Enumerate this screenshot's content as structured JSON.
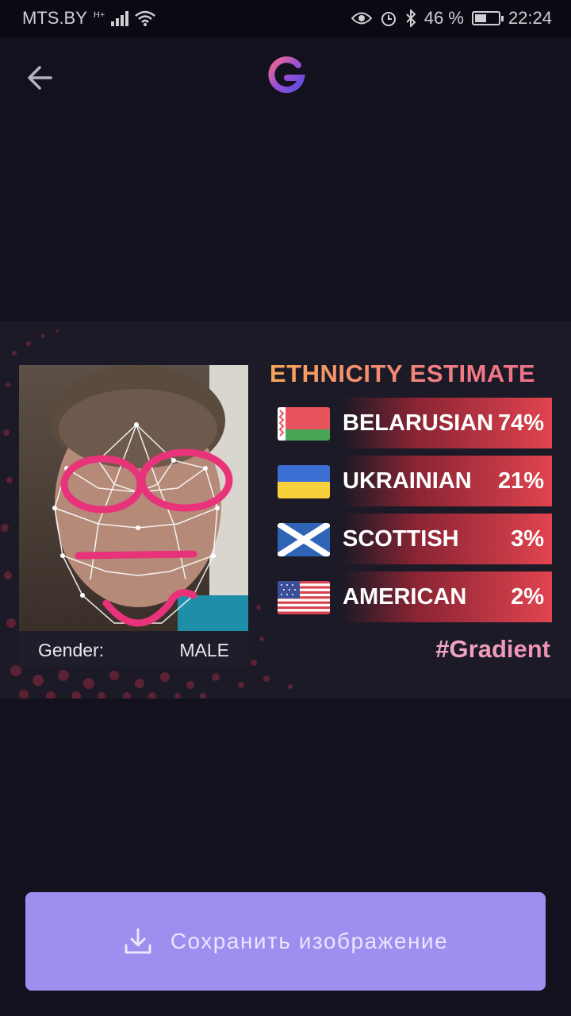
{
  "status_bar": {
    "carrier": "MTS.BY",
    "network_type": "H+",
    "battery_percent": "46 %",
    "time": "22:24",
    "icons": [
      "signal-icon",
      "wifi-icon",
      "eye-icon",
      "alarm-icon",
      "bluetooth-icon",
      "battery-icon"
    ]
  },
  "app_bar": {
    "back_icon": "arrow-left-icon",
    "logo_icon": "gradient-logo-icon"
  },
  "result_card": {
    "title": "ETHNICITY ESTIMATE",
    "gender_label": "Gender:",
    "gender_value": "MALE",
    "hashtag": "#Gradient",
    "ethnicities": [
      {
        "name": "BELARUSIAN",
        "percent": "74%",
        "flag": "flag-belarus-icon"
      },
      {
        "name": "UKRAINIAN",
        "percent": "21%",
        "flag": "flag-ukraine-icon"
      },
      {
        "name": "SCOTTISH",
        "percent": "3%",
        "flag": "flag-scotland-icon"
      },
      {
        "name": "AMERICAN",
        "percent": "2%",
        "flag": "flag-usa-icon"
      }
    ]
  },
  "save_button": {
    "label": "Сохранить изображение",
    "icon": "download-icon"
  },
  "colors": {
    "background": "#13111d",
    "card": "#1c1a26",
    "accent_button": "#9d8ef0",
    "bar_red": "#e0444f"
  }
}
